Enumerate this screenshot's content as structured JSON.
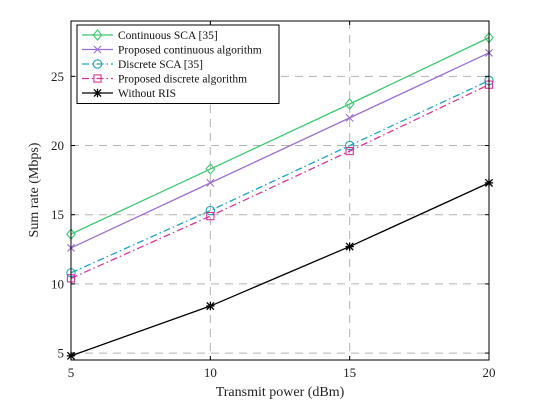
{
  "chart_data": {
    "type": "line",
    "title": "",
    "xlabel": "Transmit power (dBm)",
    "ylabel": "Sum rate (Mbps)",
    "xlim": [
      5,
      20
    ],
    "ylim": [
      4.5,
      29
    ],
    "xticks": [
      5,
      10,
      15,
      20
    ],
    "yticks": [
      5,
      10,
      15,
      20,
      25
    ],
    "grid": true,
    "legend_position": "top-left",
    "x": [
      5,
      10,
      15,
      20
    ],
    "series": [
      {
        "name": "Continuous SCA [35]",
        "values": [
          13.6,
          18.3,
          23.0,
          27.8
        ],
        "color": "#3cc86e",
        "marker": "diamond",
        "dash": "solid"
      },
      {
        "name": "Proposed continuous algorithm",
        "values": [
          12.6,
          17.3,
          22.0,
          26.7
        ],
        "color": "#9a6fd0",
        "marker": "x",
        "dash": "solid"
      },
      {
        "name": "Discrete SCA [35]",
        "values": [
          10.8,
          15.3,
          20.0,
          24.7
        ],
        "color": "#1fa3c4",
        "marker": "circle",
        "dash": "dashdot"
      },
      {
        "name": "Proposed discrete algorithm",
        "values": [
          10.4,
          14.9,
          19.6,
          24.4
        ],
        "color": "#d6369a",
        "marker": "square",
        "dash": "dashdot"
      },
      {
        "name": "Without RIS",
        "values": [
          4.8,
          8.4,
          12.7,
          17.3
        ],
        "color": "#000000",
        "marker": "star",
        "dash": "solid"
      }
    ]
  }
}
